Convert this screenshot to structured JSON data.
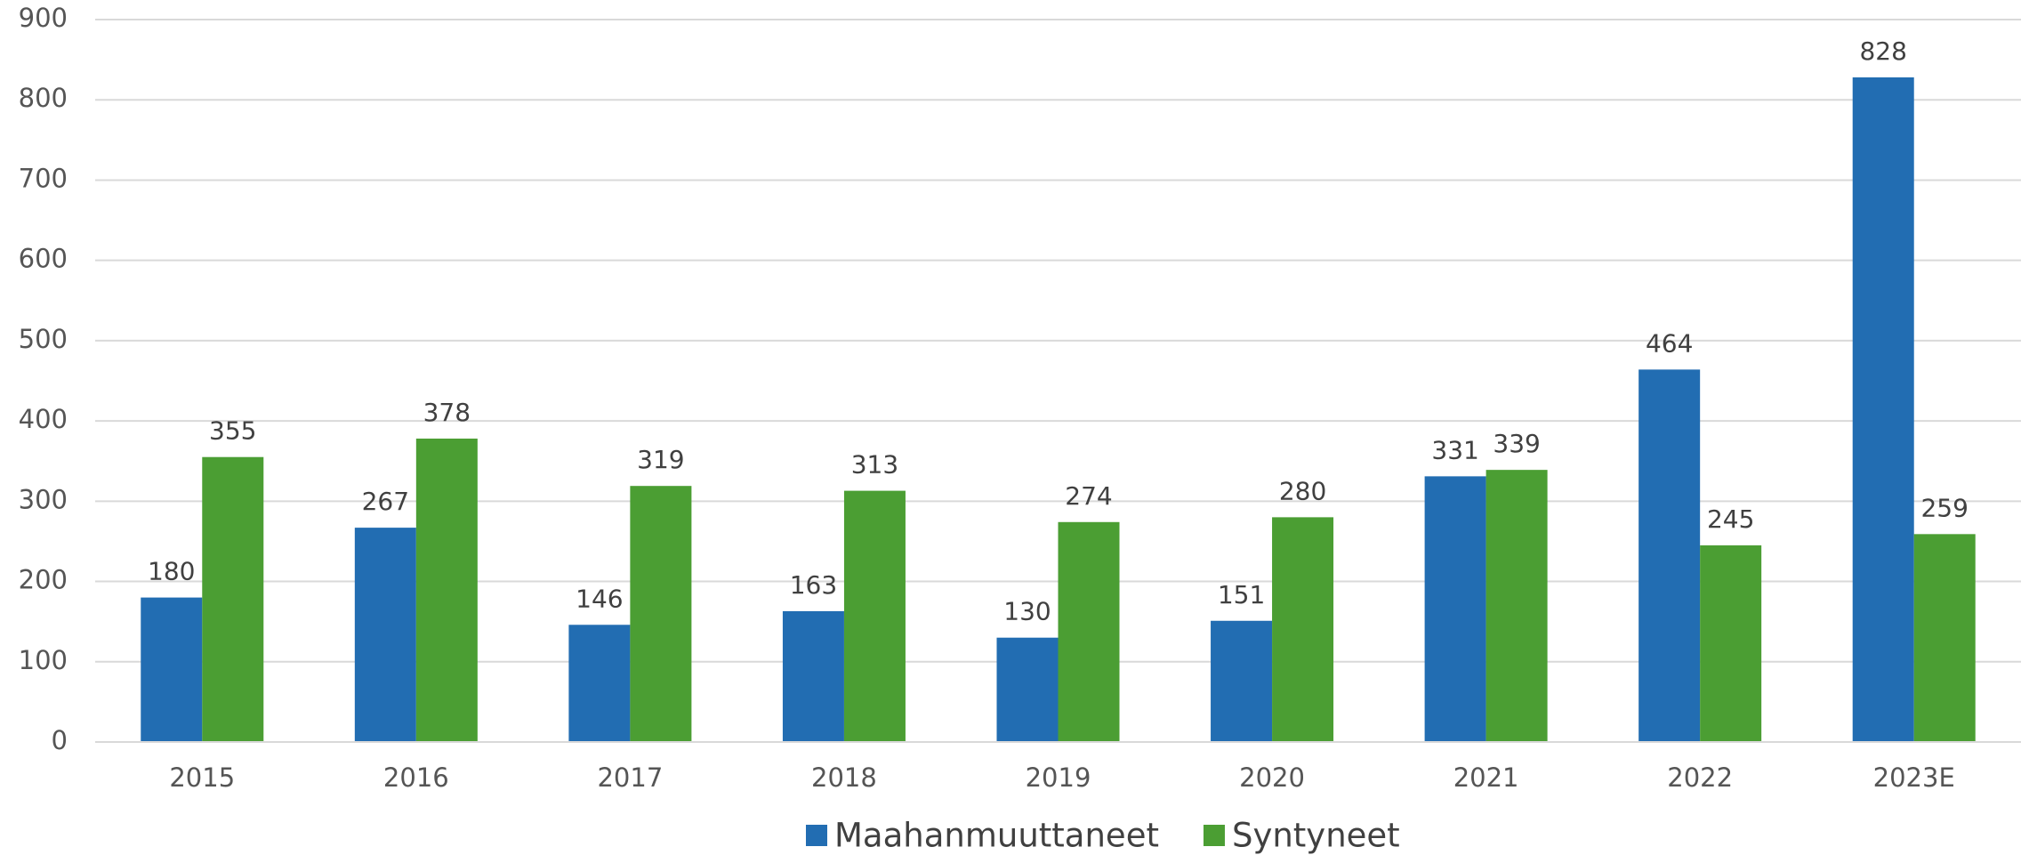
{
  "chart_data": {
    "type": "bar",
    "categories": [
      "2015",
      "2016",
      "2017",
      "2018",
      "2019",
      "2020",
      "2021",
      "2022",
      "2023E"
    ],
    "series": [
      {
        "name": "Maahanmuuttaneet",
        "color": "#226db2",
        "values": [
          180,
          267,
          146,
          163,
          130,
          151,
          331,
          464,
          828
        ]
      },
      {
        "name": "Syntyneet",
        "color": "#4b9e33",
        "values": [
          355,
          378,
          319,
          313,
          274,
          280,
          339,
          245,
          259
        ]
      }
    ],
    "ylim": [
      0,
      900
    ],
    "yticks": [
      0,
      100,
      200,
      300,
      400,
      500,
      600,
      700,
      800,
      900
    ],
    "grid": true,
    "legend": "bottom"
  }
}
